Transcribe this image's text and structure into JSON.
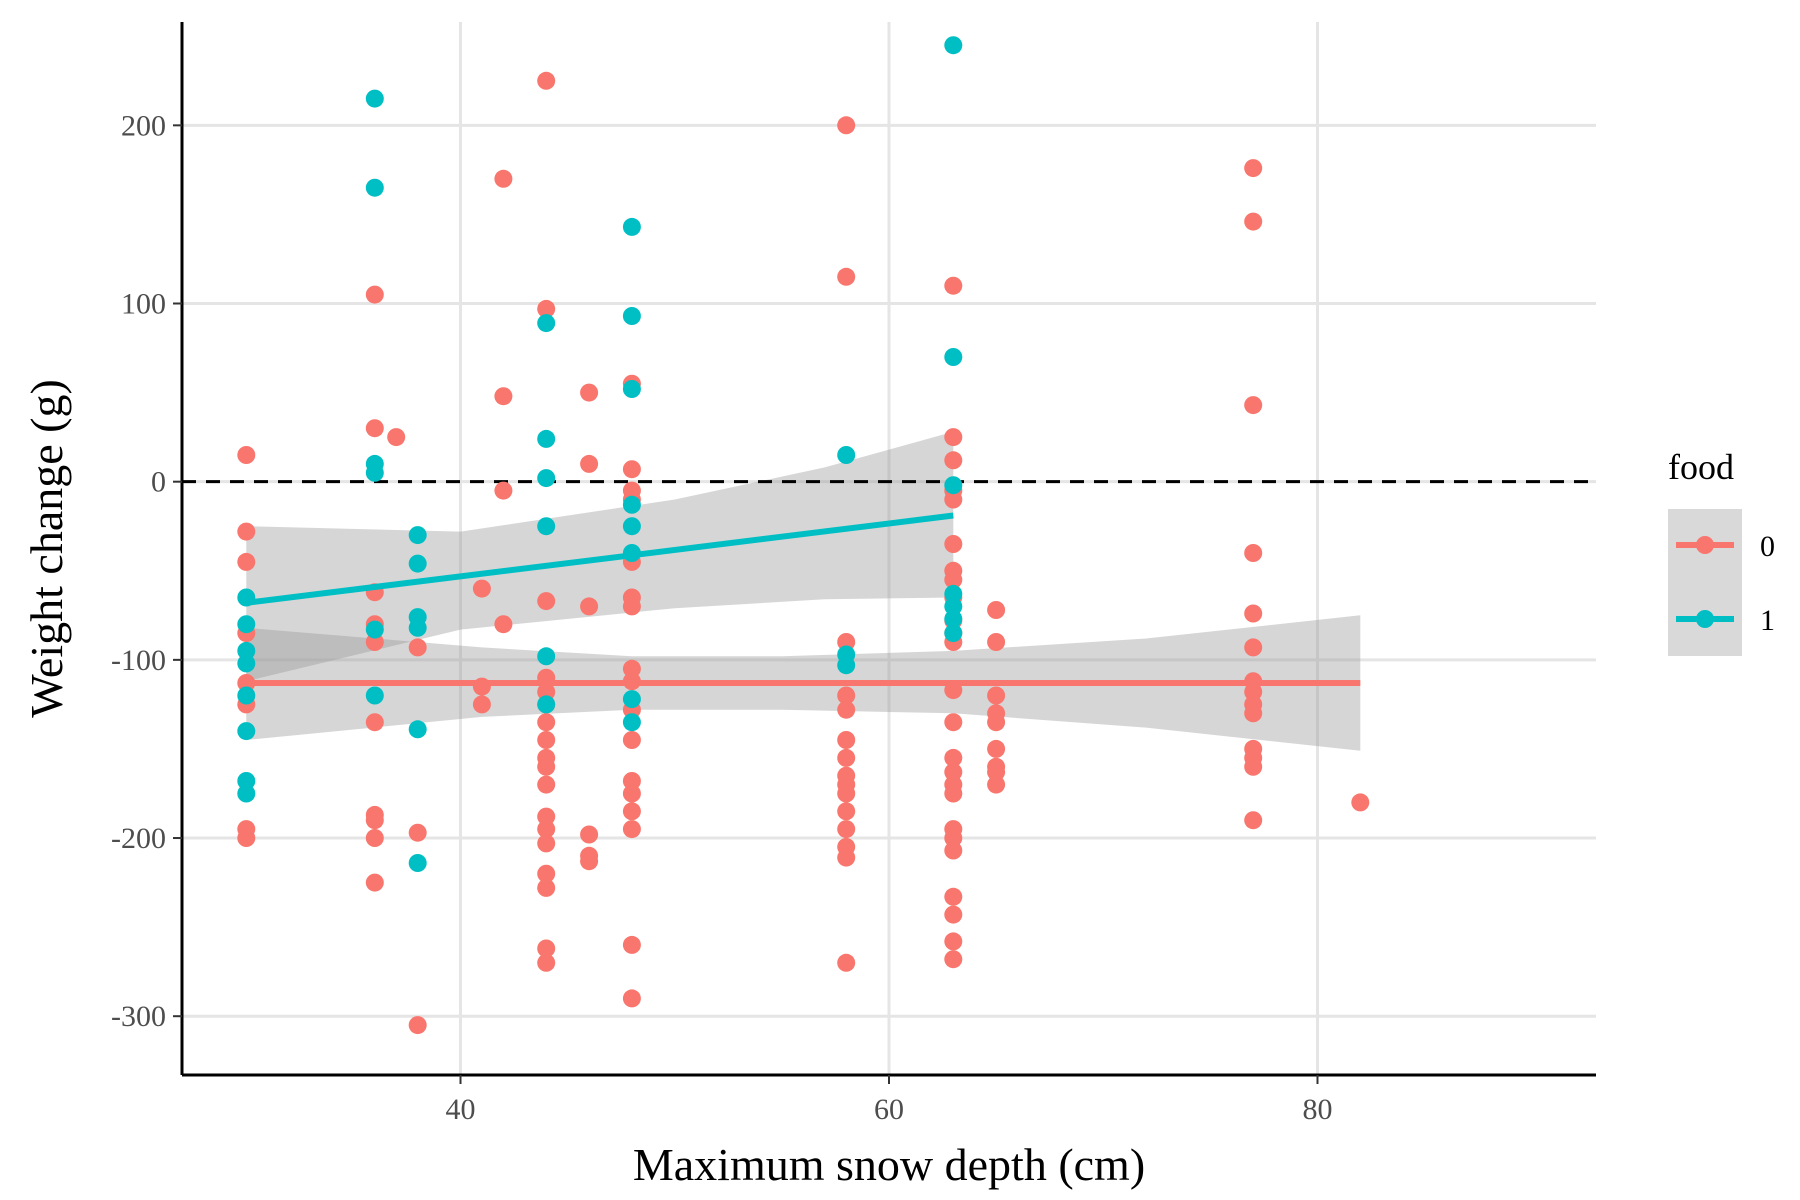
{
  "chart_data": {
    "type": "scatter",
    "xlabel": "Maximum snow depth (cm)",
    "ylabel": "Weight change (g)",
    "xlim": [
      27,
      93
    ],
    "ylim": [
      -333,
      258
    ],
    "xticks": [
      40,
      60,
      80
    ],
    "yticks": [
      -300,
      -200,
      -100,
      0,
      100,
      200
    ],
    "grid": true,
    "reference_line": {
      "y": 0,
      "style": "dashed",
      "color": "#000000"
    },
    "legend": {
      "title": "food",
      "placement": "right",
      "entries": [
        {
          "label": "0",
          "color": "#F8766D"
        },
        {
          "label": "1",
          "color": "#00BFC4"
        }
      ]
    },
    "series": [
      {
        "name": "0",
        "color": "#F8766D",
        "points": [
          [
            30,
            15
          ],
          [
            30,
            -28
          ],
          [
            30,
            -45
          ],
          [
            30,
            -85
          ],
          [
            30,
            -113
          ],
          [
            30,
            -125
          ],
          [
            30,
            -195
          ],
          [
            30,
            -200
          ],
          [
            36,
            105
          ],
          [
            36,
            30
          ],
          [
            36,
            -62
          ],
          [
            36,
            -80
          ],
          [
            36,
            -90
          ],
          [
            36,
            -135
          ],
          [
            36,
            -187
          ],
          [
            36,
            -190
          ],
          [
            36,
            -200
          ],
          [
            36,
            -225
          ],
          [
            37,
            25
          ],
          [
            38,
            -93
          ],
          [
            38,
            -197
          ],
          [
            38,
            -305
          ],
          [
            41,
            -60
          ],
          [
            41,
            -115
          ],
          [
            41,
            -125
          ],
          [
            42,
            170
          ],
          [
            42,
            48
          ],
          [
            42,
            -5
          ],
          [
            42,
            -80
          ],
          [
            44,
            225
          ],
          [
            44,
            97
          ],
          [
            44,
            -67
          ],
          [
            44,
            -110
          ],
          [
            44,
            -118
          ],
          [
            44,
            -125
          ],
          [
            44,
            -135
          ],
          [
            44,
            -145
          ],
          [
            44,
            -155
          ],
          [
            44,
            -160
          ],
          [
            44,
            -170
          ],
          [
            44,
            -188
          ],
          [
            44,
            -195
          ],
          [
            44,
            -203
          ],
          [
            44,
            -220
          ],
          [
            44,
            -228
          ],
          [
            44,
            -262
          ],
          [
            44,
            -270
          ],
          [
            46,
            50
          ],
          [
            46,
            10
          ],
          [
            46,
            -70
          ],
          [
            46,
            -198
          ],
          [
            46,
            -210
          ],
          [
            46,
            -213
          ],
          [
            48,
            55
          ],
          [
            48,
            7
          ],
          [
            48,
            -5
          ],
          [
            48,
            -10
          ],
          [
            48,
            -45
          ],
          [
            48,
            -65
          ],
          [
            48,
            -70
          ],
          [
            48,
            -105
          ],
          [
            48,
            -112
          ],
          [
            48,
            -128
          ],
          [
            48,
            -145
          ],
          [
            48,
            -168
          ],
          [
            48,
            -175
          ],
          [
            48,
            -185
          ],
          [
            48,
            -195
          ],
          [
            48,
            -260
          ],
          [
            48,
            -290
          ],
          [
            58,
            200
          ],
          [
            58,
            115
          ],
          [
            58,
            -90
          ],
          [
            58,
            -120
          ],
          [
            58,
            -128
          ],
          [
            58,
            -145
          ],
          [
            58,
            -155
          ],
          [
            58,
            -165
          ],
          [
            58,
            -170
          ],
          [
            58,
            -175
          ],
          [
            58,
            -185
          ],
          [
            58,
            -195
          ],
          [
            58,
            -205
          ],
          [
            58,
            -211
          ],
          [
            58,
            -270
          ],
          [
            63,
            110
          ],
          [
            63,
            25
          ],
          [
            63,
            12
          ],
          [
            63,
            -5
          ],
          [
            63,
            -10
          ],
          [
            63,
            -35
          ],
          [
            63,
            -50
          ],
          [
            63,
            -55
          ],
          [
            63,
            -65
          ],
          [
            63,
            -78
          ],
          [
            63,
            -85
          ],
          [
            63,
            -90
          ],
          [
            63,
            -117
          ],
          [
            63,
            -135
          ],
          [
            63,
            -155
          ],
          [
            63,
            -163
          ],
          [
            63,
            -170
          ],
          [
            63,
            -175
          ],
          [
            63,
            -195
          ],
          [
            63,
            -200
          ],
          [
            63,
            -207
          ],
          [
            63,
            -233
          ],
          [
            63,
            -243
          ],
          [
            63,
            -258
          ],
          [
            63,
            -268
          ],
          [
            65,
            -72
          ],
          [
            65,
            -90
          ],
          [
            65,
            -120
          ],
          [
            65,
            -130
          ],
          [
            65,
            -135
          ],
          [
            65,
            -150
          ],
          [
            65,
            -160
          ],
          [
            65,
            -163
          ],
          [
            65,
            -170
          ],
          [
            77,
            176
          ],
          [
            77,
            146
          ],
          [
            77,
            43
          ],
          [
            77,
            -40
          ],
          [
            77,
            -74
          ],
          [
            77,
            -93
          ],
          [
            77,
            -112
          ],
          [
            77,
            -118
          ],
          [
            77,
            -125
          ],
          [
            77,
            -130
          ],
          [
            77,
            -150
          ],
          [
            77,
            -155
          ],
          [
            77,
            -160
          ],
          [
            77,
            -190
          ],
          [
            82,
            -180
          ]
        ],
        "fit": {
          "x": [
            30,
            82
          ],
          "y": [
            -113,
            -113
          ]
        },
        "ci_band": {
          "x": [
            30,
            41,
            48,
            55,
            63,
            72,
            82
          ],
          "upper": [
            -82,
            -93,
            -98,
            -98,
            -95,
            -88,
            -75
          ],
          "lower": [
            -145,
            -132,
            -128,
            -128,
            -130,
            -138,
            -151
          ]
        }
      },
      {
        "name": "1",
        "color": "#00BFC4",
        "points": [
          [
            30,
            -65
          ],
          [
            30,
            -80
          ],
          [
            30,
            -95
          ],
          [
            30,
            -102
          ],
          [
            30,
            -120
          ],
          [
            30,
            -140
          ],
          [
            30,
            -168
          ],
          [
            30,
            -175
          ],
          [
            36,
            215
          ],
          [
            36,
            165
          ],
          [
            36,
            10
          ],
          [
            36,
            5
          ],
          [
            36,
            -83
          ],
          [
            36,
            -120
          ],
          [
            38,
            -30
          ],
          [
            38,
            -46
          ],
          [
            38,
            -76
          ],
          [
            38,
            -82
          ],
          [
            38,
            -139
          ],
          [
            38,
            -214
          ],
          [
            44,
            89
          ],
          [
            44,
            24
          ],
          [
            44,
            2
          ],
          [
            44,
            -25
          ],
          [
            44,
            -98
          ],
          [
            44,
            -125
          ],
          [
            48,
            143
          ],
          [
            48,
            93
          ],
          [
            48,
            52
          ],
          [
            48,
            -13
          ],
          [
            48,
            -25
          ],
          [
            48,
            -40
          ],
          [
            48,
            -122
          ],
          [
            48,
            -135
          ],
          [
            58,
            15
          ],
          [
            58,
            -97
          ],
          [
            58,
            -103
          ],
          [
            63,
            245
          ],
          [
            63,
            70
          ],
          [
            63,
            -2
          ],
          [
            63,
            -63
          ],
          [
            63,
            -70
          ],
          [
            63,
            -77
          ],
          [
            63,
            -85
          ]
        ],
        "fit": {
          "x": [
            30,
            63
          ],
          "y": [
            -68,
            -19
          ]
        },
        "ci_band": {
          "x": [
            30,
            40,
            50,
            57,
            63
          ],
          "upper": [
            -25,
            -28,
            -10,
            8,
            28
          ],
          "lower": [
            -112,
            -83,
            -71,
            -66,
            -65
          ]
        }
      }
    ]
  }
}
